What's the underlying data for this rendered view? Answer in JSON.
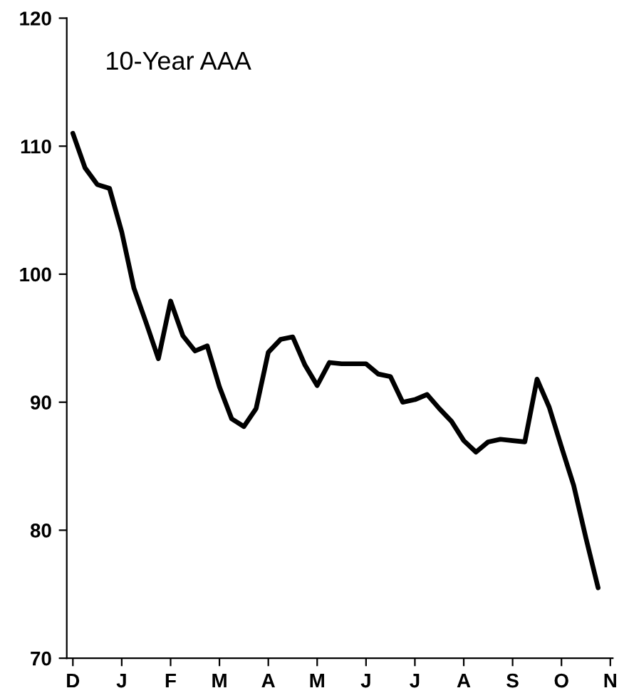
{
  "chart_data": {
    "type": "line",
    "title": "10-Year AAA",
    "color": "#000000",
    "line_style": "solid",
    "marker": "none",
    "grid": false,
    "legend": false,
    "categories": [
      "D",
      null,
      null,
      null,
      "J",
      null,
      null,
      null,
      "F",
      null,
      null,
      null,
      "M",
      null,
      null,
      null,
      "A",
      null,
      null,
      null,
      "M",
      null,
      null,
      null,
      "J",
      null,
      null,
      null,
      "J",
      null,
      null,
      null,
      "A",
      null,
      null,
      null,
      "S",
      null,
      null,
      null,
      "O",
      null,
      null,
      null,
      "N"
    ],
    "values": [
      111.0,
      108.3,
      107.0,
      106.7,
      103.3,
      98.9,
      96.2,
      93.4,
      97.9,
      95.2,
      94.0,
      94.4,
      91.2,
      88.7,
      88.1,
      89.5,
      93.9,
      94.9,
      95.1,
      92.9,
      91.3,
      93.1,
      93.0,
      93.0,
      93.0,
      92.2,
      92.0,
      90.0,
      90.2,
      90.6,
      89.5,
      88.5,
      87.0,
      86.1,
      86.9,
      87.1,
      87.0,
      86.9,
      91.8,
      89.6,
      86.5,
      83.5,
      79.4,
      75.5,
      null
    ],
    "ylim": [
      70,
      120
    ],
    "yticks": [
      70,
      80,
      90,
      100,
      110,
      120
    ]
  }
}
